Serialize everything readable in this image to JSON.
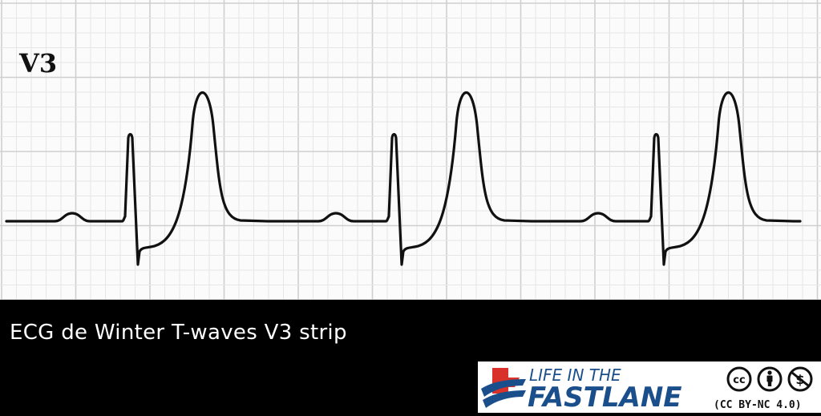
{
  "strip": {
    "lead_label": "V3",
    "trace_color": "#111111",
    "grid_minor_color": "#e6e6e6",
    "grid_major_color": "#cfcfcf"
  },
  "caption": "ECG de Winter T-waves V3 strip",
  "brand": {
    "line1": "LIFE IN THE",
    "line2": "FASTLANE",
    "license": "(CC BY-NC 4.0)",
    "primary_color": "#1b4f8c",
    "accent_color": "#d9322b",
    "cc_icon": "cc-icon",
    "by_icon": "attribution-icon",
    "nc_icon": "noncommercial-icon"
  }
}
